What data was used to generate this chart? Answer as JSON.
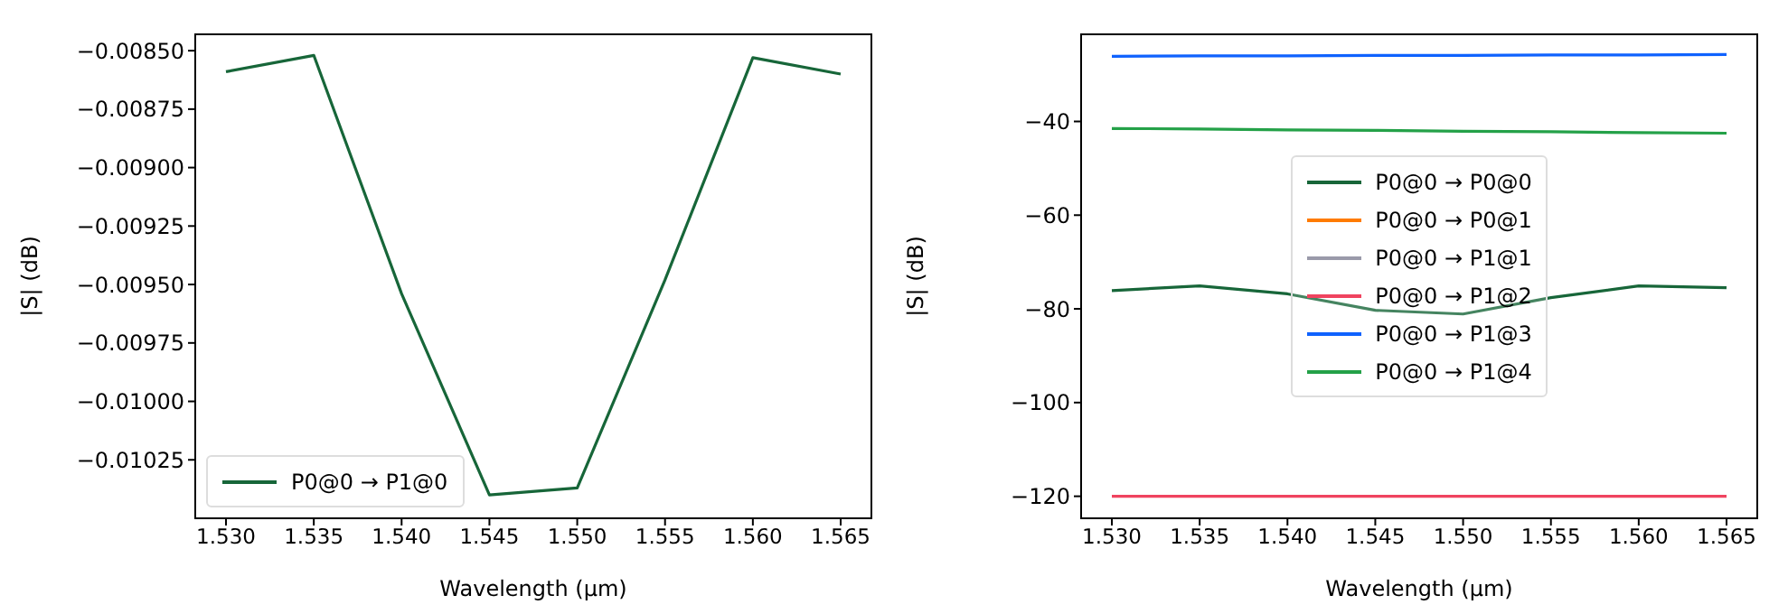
{
  "chart_data": [
    {
      "type": "line",
      "xlabel": "Wavelength (µm)",
      "ylabel": "|S| (dB)",
      "x": [
        1.53,
        1.535,
        1.54,
        1.545,
        1.55,
        1.555,
        1.56,
        1.565
      ],
      "series": [
        {
          "name": "P0@0 → P1@0",
          "color": "#176639",
          "values": [
            -0.00859,
            -0.00852,
            -0.00954,
            -0.0104,
            -0.01037,
            -0.00948,
            -0.00853,
            -0.0086
          ]
        }
      ],
      "xlim": [
        1.52825,
        1.56675
      ],
      "xticks": [
        {
          "value": 1.53,
          "label": "1.530"
        },
        {
          "value": 1.535,
          "label": "1.535"
        },
        {
          "value": 1.54,
          "label": "1.540"
        },
        {
          "value": 1.545,
          "label": "1.545"
        },
        {
          "value": 1.55,
          "label": "1.550"
        },
        {
          "value": 1.555,
          "label": "1.555"
        },
        {
          "value": 1.56,
          "label": "1.560"
        },
        {
          "value": 1.565,
          "label": "1.565"
        }
      ],
      "ylim": [
        -0.0105,
        -0.00843
      ],
      "yticks": [
        {
          "value": -0.0085,
          "label": "−0.00850"
        },
        {
          "value": -0.00875,
          "label": "−0.00875"
        },
        {
          "value": -0.009,
          "label": "−0.00900"
        },
        {
          "value": -0.00925,
          "label": "−0.00925"
        },
        {
          "value": -0.0095,
          "label": "−0.00950"
        },
        {
          "value": -0.00975,
          "label": "−0.00975"
        },
        {
          "value": -0.01,
          "label": "−0.01000"
        },
        {
          "value": -0.01025,
          "label": "−0.01025"
        }
      ],
      "grid": false,
      "legend": "bottom left"
    },
    {
      "type": "line",
      "xlabel": "Wavelength (µm)",
      "ylabel": "|S| (dB)",
      "x": [
        1.53,
        1.535,
        1.54,
        1.545,
        1.55,
        1.555,
        1.56,
        1.565
      ],
      "series": [
        {
          "name": "P0@0 → P0@0",
          "color": "#176639",
          "values": [
            -76.1,
            -75.1,
            -76.8,
            -80.3,
            -81.1,
            -77.6,
            -75.1,
            -75.5
          ]
        },
        {
          "name": "P0@0 → P0@1",
          "color": "#ff7b00",
          "values": [
            null,
            null,
            null,
            null,
            null,
            null,
            null,
            null
          ]
        },
        {
          "name": "P0@0 → P1@1",
          "color": "#9a9aaa",
          "values": [
            null,
            null,
            null,
            null,
            null,
            null,
            null,
            null
          ]
        },
        {
          "name": "P0@0 → P1@2",
          "color": "#f0435f",
          "values": [
            -120,
            -120,
            -120,
            -120,
            -120,
            -120,
            -120,
            -120
          ]
        },
        {
          "name": "P0@0 → P1@3",
          "color": "#0f62fe",
          "values": [
            -26.1,
            -26.0,
            -26.0,
            -25.9,
            -25.9,
            -25.8,
            -25.8,
            -25.7
          ]
        },
        {
          "name": "P0@0 → P1@4",
          "color": "#24a148",
          "values": [
            -41.5,
            -41.6,
            -41.8,
            -41.9,
            -42.1,
            -42.2,
            -42.4,
            -42.5
          ]
        }
      ],
      "xlim": [
        1.52825,
        1.56675
      ],
      "xticks": [
        {
          "value": 1.53,
          "label": "1.530"
        },
        {
          "value": 1.535,
          "label": "1.535"
        },
        {
          "value": 1.54,
          "label": "1.540"
        },
        {
          "value": 1.545,
          "label": "1.545"
        },
        {
          "value": 1.55,
          "label": "1.550"
        },
        {
          "value": 1.555,
          "label": "1.555"
        },
        {
          "value": 1.56,
          "label": "1.560"
        },
        {
          "value": 1.565,
          "label": "1.565"
        }
      ],
      "ylim": [
        -124.7,
        -21.4
      ],
      "yticks": [
        {
          "value": -120,
          "label": "−120"
        },
        {
          "value": -100,
          "label": "−100"
        },
        {
          "value": -80,
          "label": "−80"
        },
        {
          "value": -60,
          "label": "−60"
        },
        {
          "value": -40,
          "label": "−40"
        }
      ],
      "grid": false,
      "legend": "center"
    }
  ]
}
